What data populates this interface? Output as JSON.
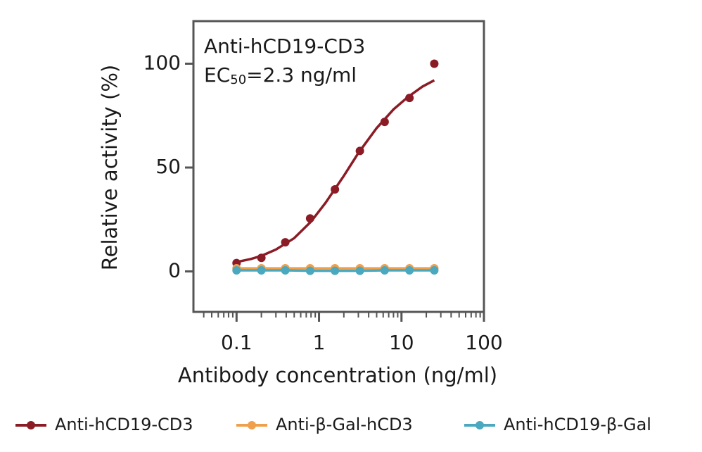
{
  "chart_data": {
    "type": "scatter",
    "annotation": {
      "line1": "Anti-hCD19-CD3",
      "ec": "EC",
      "sub": "50",
      "rest": "=2.3 ng/ml"
    },
    "xlabel": "Antibody concentration (ng/ml)",
    "ylabel": "Relative activity (%)",
    "xscale": "log",
    "xlim": [
      0.03,
      100
    ],
    "ylim": [
      -19.5,
      120.5
    ],
    "xticks": [
      0.1,
      1,
      10,
      100
    ],
    "xminorticks": [
      0.04,
      0.05,
      0.06,
      0.07,
      0.08,
      0.09,
      0.2,
      0.3,
      0.4,
      0.5,
      0.6,
      0.7,
      0.8,
      0.9,
      2,
      3,
      4,
      5,
      6,
      7,
      8,
      9,
      20,
      30,
      40,
      50,
      60,
      70,
      80,
      90
    ],
    "yticks": [
      0,
      50,
      100
    ],
    "x": [
      0.1,
      0.2,
      0.39,
      0.78,
      1.56,
      3.13,
      6.25,
      12.5,
      25
    ],
    "series": [
      {
        "name": "Anti-hCD19-CD3",
        "color": "#8b1c26",
        "values": [
          4,
          6.5,
          14,
          25.5,
          39.5,
          58,
          72,
          83.5,
          100
        ],
        "fit": {
          "x": [
            0.1,
            0.15,
            0.2,
            0.3,
            0.5,
            0.8,
            1.2,
            2,
            3,
            5,
            8,
            12,
            18,
            25
          ],
          "values": [
            4.5,
            6,
            7.5,
            10.5,
            16,
            24,
            33,
            46,
            57,
            69,
            78,
            84,
            89,
            92
          ]
        }
      },
      {
        "name": "Anti-β-Gal-hCD3",
        "color": "#f0a04b",
        "values": [
          1.5,
          1.5,
          1.5,
          1.5,
          1.5,
          1.5,
          1.5,
          1.5,
          1.5
        ]
      },
      {
        "name": "Anti-hCD19-β-Gal",
        "color": "#4aa8bf",
        "values": [
          0.5,
          0.5,
          0.5,
          0.3,
          0.3,
          0.3,
          0.5,
          0.5,
          0.5
        ]
      }
    ]
  }
}
